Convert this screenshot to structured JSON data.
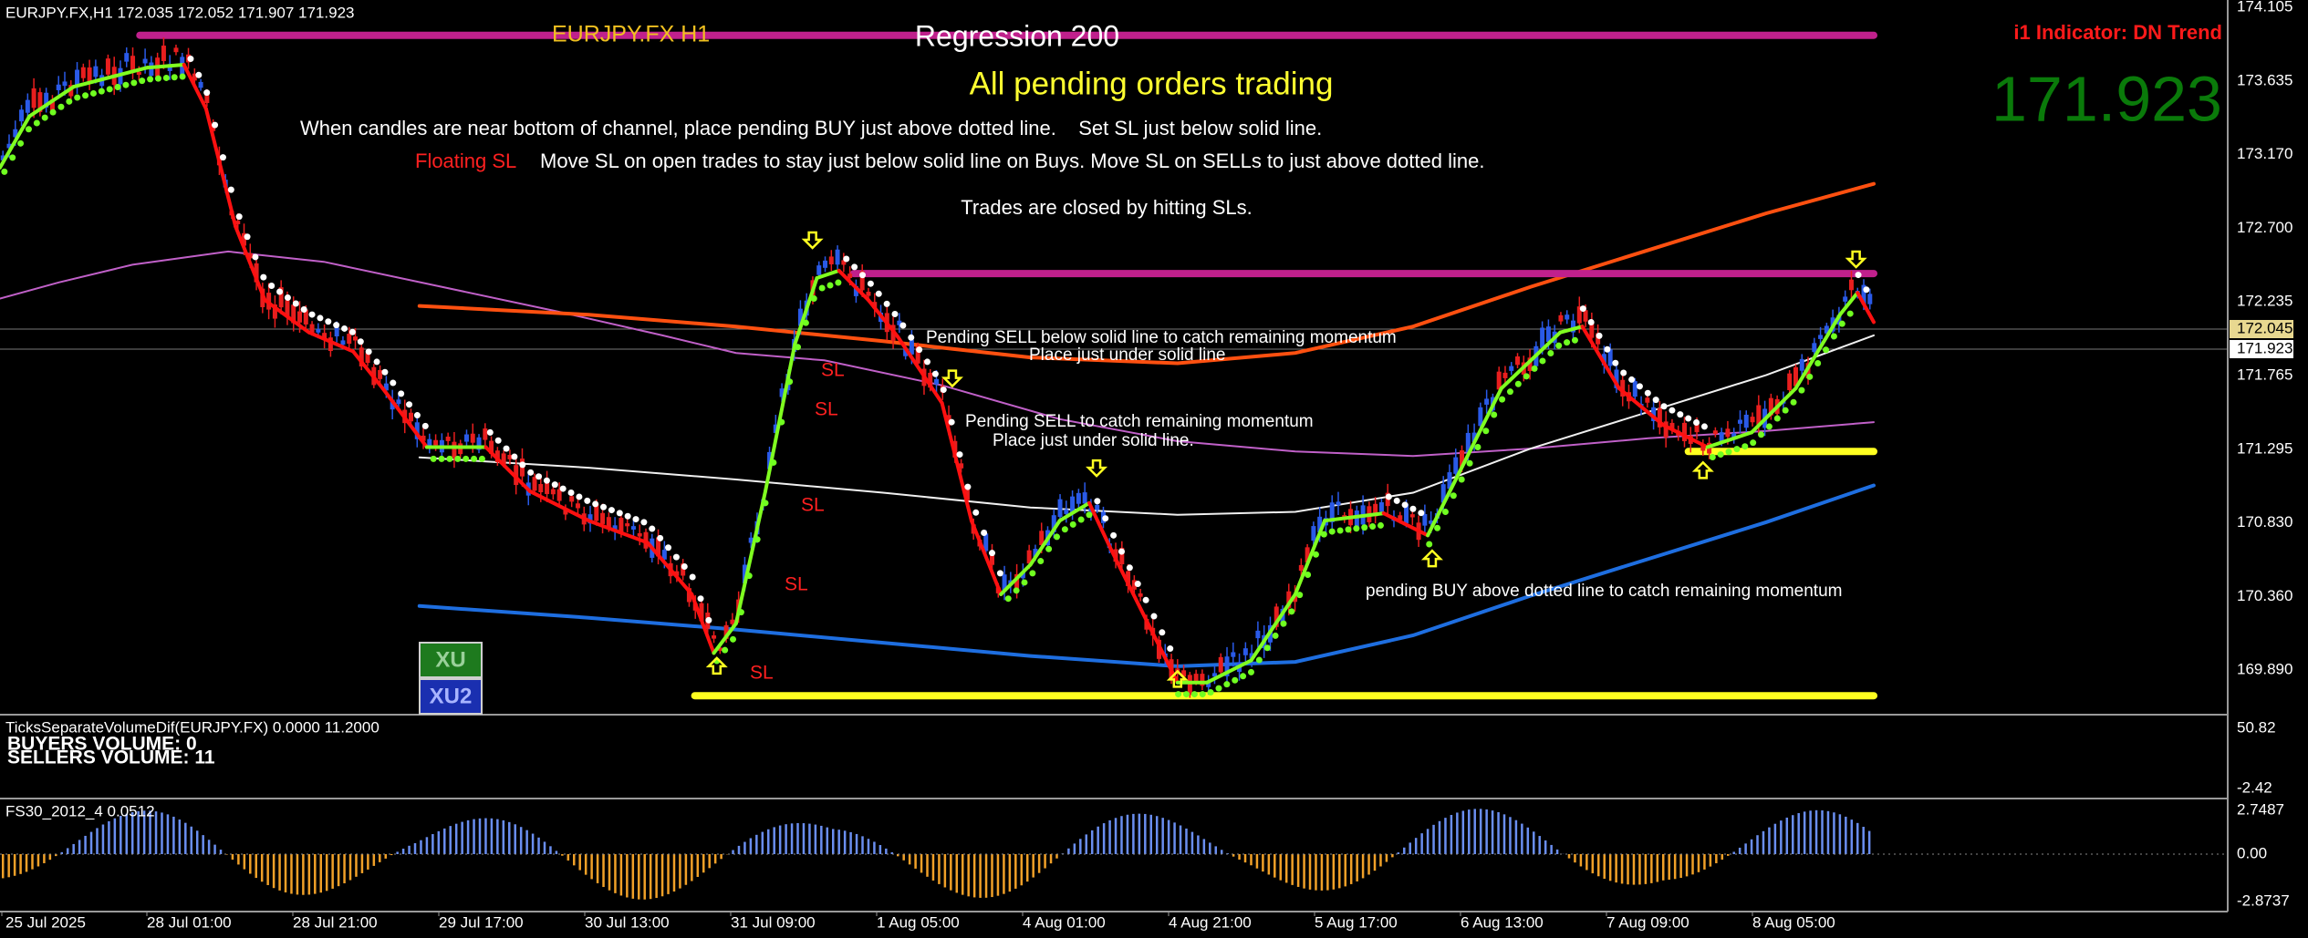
{
  "header": {
    "symbol_info": "EURJPY.FX,H1  172.035 172.052 171.907 171.923"
  },
  "overlay": {
    "symbol_label": "EURJPY.FX H1",
    "regression": "Regression 200",
    "strategy": "All pending orders trading",
    "instruction": "When candles are near bottom of channel, place pending BUY just above dotted line.    Set SL just below solid line.",
    "floating_sl": "Floating SL",
    "move_sl": "Move SL on open trades to stay just below solid line on Buys.  Move SL on SELLs to just above dotted line.",
    "closing": "Trades are closed by hitting SLs."
  },
  "indicator": {
    "trend": "i1 Indicator: DN Trend",
    "price": "171.923"
  },
  "annotations": [
    "Pending SELL below solid line to catch remaining momentum",
    "Place just under solid line",
    "Pending SELL to catch remaining momentum",
    "Place just under solid line.",
    "pending BUY above dotted line to catch remaining momentum"
  ],
  "sl_labels": [
    "SL",
    "SL",
    "SL",
    "SL",
    "SL"
  ],
  "buttons": [
    "XU",
    "XU2"
  ],
  "price_axis": {
    "labels": [
      "174.105",
      "173.635",
      "173.170",
      "172.700",
      "172.235",
      "171.765",
      "171.295",
      "170.830",
      "170.360",
      "169.890"
    ],
    "bid": "172.045",
    "last": "171.923"
  },
  "time_axis": [
    "25 Jul 2025",
    "28 Jul 01:00",
    "28 Jul 21:00",
    "29 Jul 17:00",
    "30 Jul 13:00",
    "31 Jul 09:00",
    "1 Aug 05:00",
    "4 Aug 01:00",
    "4 Aug 21:00",
    "5 Aug 17:00",
    "6 Aug 13:00",
    "7 Aug 09:00",
    "8 Aug 05:00"
  ],
  "volume_panel": {
    "title": "TicksSeparateVolumeDif(EURJPY.FX) 0.0000 11.2000",
    "buyers": "BUYERS VOLUME: 0",
    "sellers": "SELLERS VOLUME: 11",
    "axis": [
      "50.82",
      "-2.42"
    ]
  },
  "fs_panel": {
    "title": "FS30_2012_4 0.0512",
    "axis": [
      "2.7487",
      "0.00",
      "-2.8737"
    ]
  }
}
